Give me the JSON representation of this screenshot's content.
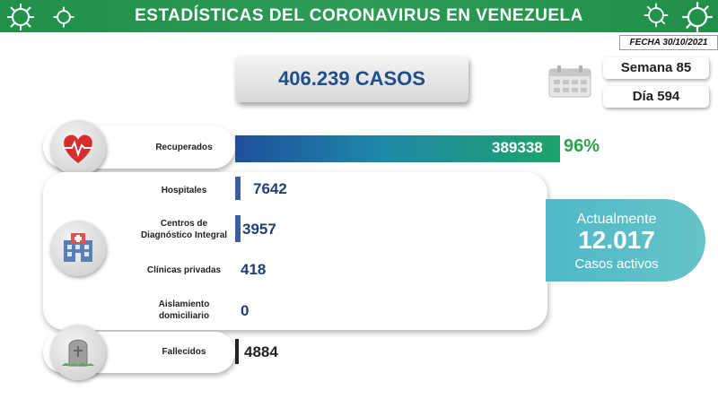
{
  "header": {
    "title": "ESTADÍSTICAS DEL CORONAVIRUS EN VENEZUELA",
    "date": "FECHA 30/10/2021"
  },
  "summary": {
    "total_cases": "406.239 CASOS",
    "week": "Semana 85",
    "day": "Día 594"
  },
  "recovered": {
    "label": "Recuperados",
    "value": "389338",
    "percent": "96%"
  },
  "categories": [
    {
      "label": "Hospitales",
      "value": "7642"
    },
    {
      "label": "Centros de Diagnóstico Integral",
      "value": "3957"
    },
    {
      "label": "Clínicas privadas",
      "value": "418"
    },
    {
      "label": "Aislamiento domiciliario",
      "value": "0"
    }
  ],
  "active": {
    "label": "Actualmente",
    "value": "12.017",
    "sublabel": "Casos activos"
  },
  "deaths": {
    "label": "Fallecidos",
    "value": "4884"
  },
  "icons": {
    "virus": "virus-icon",
    "calendar": "calendar-icon",
    "heart": "heart-pulse-icon",
    "hospital": "hospital-icon",
    "grave": "tombstone-icon"
  },
  "colors": {
    "banner": "#2e9b57",
    "accent_blue": "#1d4f8a",
    "recovered_pct": "#2ea14f",
    "active_panel": "#66c4c9"
  }
}
